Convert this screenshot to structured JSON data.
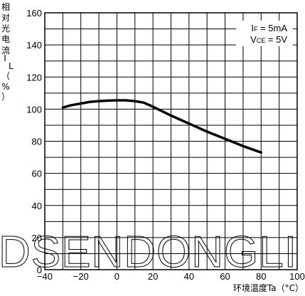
{
  "chart_data": {
    "type": "line",
    "title": "",
    "xlabel": "环境温度Ta（°C）",
    "ylabel_chars": [
      "相",
      "对",
      "光",
      "电",
      "流",
      "I",
      "L",
      "（",
      "%",
      "）"
    ],
    "x_ticks": [
      "−40",
      "−20",
      "0",
      "20",
      "40",
      "60",
      "80",
      "100"
    ],
    "y_ticks": [
      "0",
      "20",
      "40",
      "60",
      "80",
      "100",
      "120",
      "140",
      "160"
    ],
    "xlim": [
      -40,
      100
    ],
    "ylim": [
      0,
      160
    ],
    "grid": true,
    "conditions": [
      {
        "sym": "I",
        "sub": "F",
        "rest": " = 5mA"
      },
      {
        "sym": "V",
        "sub": "CE",
        "rest": " = 5V"
      }
    ],
    "series": [
      {
        "x": [
          -30,
          -25,
          -20,
          -15,
          -10,
          -5,
          0,
          5,
          10,
          15,
          20,
          30,
          40,
          50,
          60,
          70,
          80
        ],
        "values": [
          101,
          102.5,
          103.5,
          104.5,
          105,
          105.3,
          105.5,
          105.5,
          105,
          104,
          101.5,
          96,
          91,
          86,
          81.5,
          77,
          73
        ]
      }
    ],
    "color": "#000000",
    "watermark": "DSENDONGLI"
  }
}
